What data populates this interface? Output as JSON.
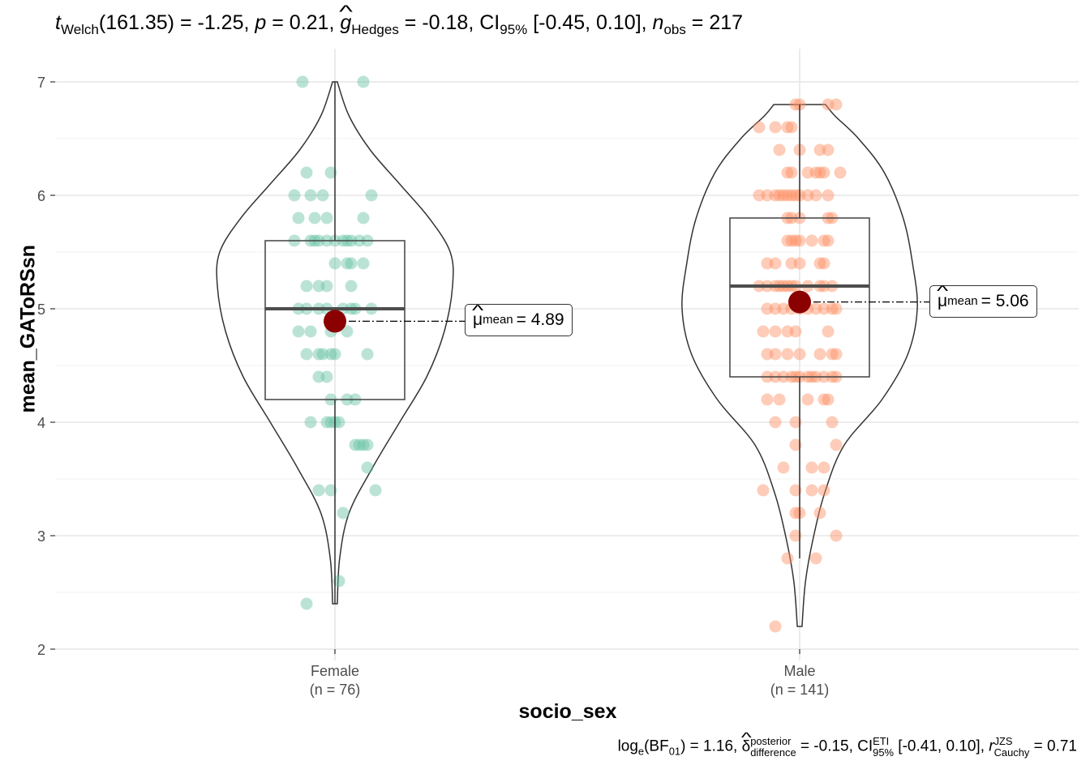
{
  "title": {
    "t_symbol": "t",
    "t_sub": "Welch",
    "df": "(161.35)",
    "eq1": " = -1.25, ",
    "p_symbol": "p",
    "eq2": " = 0.21, ",
    "g_symbol": "g",
    "g_sub": "Hedges",
    "eq3": " = -0.18, CI",
    "ci_sub": "95%",
    "ci_text": " [-0.45, 0.10], ",
    "n_symbol": "n",
    "n_sub": "obs",
    "eq4": " = 217"
  },
  "caption": {
    "log": "log",
    "log_sub": "e",
    "bf": "(BF",
    "bf_sub": "01",
    "eq1": ") = 1.16, ",
    "delta": "δ",
    "delta_sup": "posterior",
    "delta_sub": "difference",
    "eq2": " = -0.15, CI",
    "ci_sup": "ETI",
    "ci_sub": "95%",
    "ci_text": " [-0.41, 0.10], ",
    "r_symbol": "r",
    "r_sup": "JZS",
    "r_sub": "Cauchy",
    "eq3": " = 0.71"
  },
  "chart_data": {
    "type": "violin-box-scatter",
    "xlabel": "socio_sex",
    "ylabel": "mean_GAToRSsn",
    "ylim": [
      2,
      7
    ],
    "yticks": [
      2,
      3,
      4,
      5,
      6,
      7
    ],
    "grid": true,
    "groups": [
      {
        "name": "Female",
        "count_label": "(n = 76)",
        "color": "#66c2a5",
        "box": {
          "q1": 4.2,
          "median": 5.0,
          "q3": 5.6,
          "whisker_low": 2.4,
          "whisker_high": 7.0
        },
        "mean": 4.89,
        "mean_label_symbol": "μ",
        "mean_label_sub": "mean",
        "mean_label_value": "= 4.89",
        "violin": [
          [
            2.4,
            0.02
          ],
          [
            2.8,
            0.04
          ],
          [
            3.2,
            0.12
          ],
          [
            3.6,
            0.32
          ],
          [
            4.0,
            0.55
          ],
          [
            4.4,
            0.78
          ],
          [
            4.8,
            0.93
          ],
          [
            5.2,
            1.0
          ],
          [
            5.5,
            0.98
          ],
          [
            5.8,
            0.8
          ],
          [
            6.1,
            0.55
          ],
          [
            6.4,
            0.3
          ],
          [
            6.7,
            0.12
          ],
          [
            7.0,
            0.02
          ]
        ],
        "points": [
          [
            -0.08,
            7.0
          ],
          [
            0.07,
            7.0
          ],
          [
            -0.07,
            6.2
          ],
          [
            -0.01,
            6.2
          ],
          [
            -0.1,
            6.0
          ],
          [
            -0.06,
            6.0
          ],
          [
            -0.03,
            6.0
          ],
          [
            0.09,
            6.0
          ],
          [
            -0.09,
            5.8
          ],
          [
            -0.05,
            5.8
          ],
          [
            -0.02,
            5.8
          ],
          [
            0.07,
            5.8
          ],
          [
            -0.1,
            5.6
          ],
          [
            -0.06,
            5.6
          ],
          [
            -0.05,
            5.6
          ],
          [
            -0.04,
            5.6
          ],
          [
            -0.02,
            5.6
          ],
          [
            0.0,
            5.6
          ],
          [
            0.02,
            5.6
          ],
          [
            0.03,
            5.6
          ],
          [
            0.04,
            5.6
          ],
          [
            0.06,
            5.6
          ],
          [
            0.08,
            5.6
          ],
          [
            0.0,
            5.4
          ],
          [
            0.03,
            5.4
          ],
          [
            0.04,
            5.4
          ],
          [
            0.07,
            5.4
          ],
          [
            -0.07,
            5.2
          ],
          [
            -0.04,
            5.2
          ],
          [
            -0.02,
            5.2
          ],
          [
            0.04,
            5.2
          ],
          [
            -0.09,
            5.0
          ],
          [
            -0.07,
            5.0
          ],
          [
            -0.04,
            5.0
          ],
          [
            -0.02,
            5.0
          ],
          [
            0.02,
            5.0
          ],
          [
            0.04,
            5.0
          ],
          [
            0.05,
            5.0
          ],
          [
            0.09,
            5.0
          ],
          [
            -0.09,
            4.8
          ],
          [
            -0.06,
            4.8
          ],
          [
            -0.01,
            4.8
          ],
          [
            0.03,
            4.8
          ],
          [
            -0.07,
            4.6
          ],
          [
            -0.04,
            4.6
          ],
          [
            -0.03,
            4.6
          ],
          [
            -0.01,
            4.6
          ],
          [
            0.0,
            4.6
          ],
          [
            0.08,
            4.6
          ],
          [
            -0.04,
            4.4
          ],
          [
            -0.02,
            4.4
          ],
          [
            -0.01,
            4.2
          ],
          [
            0.03,
            4.2
          ],
          [
            0.05,
            4.2
          ],
          [
            -0.06,
            4.0
          ],
          [
            -0.02,
            4.0
          ],
          [
            -0.01,
            4.0
          ],
          [
            0.0,
            4.0
          ],
          [
            0.01,
            4.0
          ],
          [
            0.05,
            3.8
          ],
          [
            0.06,
            3.8
          ],
          [
            0.07,
            3.8
          ],
          [
            0.08,
            3.8
          ],
          [
            0.08,
            3.6
          ],
          [
            -0.04,
            3.4
          ],
          [
            -0.01,
            3.4
          ],
          [
            0.1,
            3.4
          ],
          [
            0.02,
            3.2
          ],
          [
            0.01,
            2.6
          ],
          [
            -0.07,
            2.4
          ]
        ]
      },
      {
        "name": "Male",
        "count_label": "(n = 141)",
        "color": "#fc8d62",
        "box": {
          "q1": 4.4,
          "median": 5.2,
          "q3": 5.8,
          "whisker_low": 2.8,
          "whisker_high": 6.8
        },
        "mean": 5.06,
        "mean_label_symbol": "μ",
        "mean_label_sub": "mean",
        "mean_label_value": "= 5.06",
        "violin": [
          [
            2.2,
            0.02
          ],
          [
            2.6,
            0.05
          ],
          [
            3.0,
            0.12
          ],
          [
            3.4,
            0.22
          ],
          [
            3.8,
            0.38
          ],
          [
            4.2,
            0.7
          ],
          [
            4.6,
            0.92
          ],
          [
            5.0,
            1.0
          ],
          [
            5.4,
            0.96
          ],
          [
            5.8,
            0.88
          ],
          [
            6.2,
            0.72
          ],
          [
            6.5,
            0.5
          ],
          [
            6.7,
            0.3
          ],
          [
            6.8,
            0.22
          ]
        ],
        "points": [
          [
            -0.01,
            6.8
          ],
          [
            0.0,
            6.8
          ],
          [
            0.07,
            6.8
          ],
          [
            0.09,
            6.8
          ],
          [
            -0.06,
            6.6
          ],
          [
            -0.03,
            6.6
          ],
          [
            -0.02,
            6.6
          ],
          [
            -0.1,
            6.6
          ],
          [
            -0.05,
            6.4
          ],
          [
            0.0,
            6.4
          ],
          [
            0.05,
            6.4
          ],
          [
            0.07,
            6.4
          ],
          [
            -0.03,
            6.2
          ],
          [
            -0.02,
            6.2
          ],
          [
            0.02,
            6.2
          ],
          [
            0.04,
            6.2
          ],
          [
            0.05,
            6.2
          ],
          [
            0.06,
            6.2
          ],
          [
            0.1,
            6.2
          ],
          [
            -0.1,
            6.0
          ],
          [
            -0.08,
            6.0
          ],
          [
            -0.06,
            6.0
          ],
          [
            -0.05,
            6.0
          ],
          [
            -0.04,
            6.0
          ],
          [
            -0.03,
            6.0
          ],
          [
            -0.02,
            6.0
          ],
          [
            -0.01,
            6.0
          ],
          [
            0.0,
            6.0
          ],
          [
            0.02,
            6.0
          ],
          [
            0.04,
            6.0
          ],
          [
            0.07,
            6.0
          ],
          [
            -0.03,
            5.8
          ],
          [
            -0.02,
            5.8
          ],
          [
            0.0,
            5.8
          ],
          [
            0.07,
            5.8
          ],
          [
            0.08,
            5.8
          ],
          [
            -0.03,
            5.6
          ],
          [
            -0.02,
            5.6
          ],
          [
            -0.01,
            5.6
          ],
          [
            0.0,
            5.6
          ],
          [
            0.03,
            5.6
          ],
          [
            0.06,
            5.6
          ],
          [
            0.07,
            5.6
          ],
          [
            -0.06,
            5.4
          ],
          [
            -0.08,
            5.4
          ],
          [
            -0.02,
            5.4
          ],
          [
            0.0,
            5.4
          ],
          [
            0.05,
            5.4
          ],
          [
            0.06,
            5.4
          ],
          [
            -0.1,
            5.2
          ],
          [
            -0.08,
            5.2
          ],
          [
            -0.06,
            5.2
          ],
          [
            -0.05,
            5.2
          ],
          [
            -0.04,
            5.2
          ],
          [
            -0.03,
            5.2
          ],
          [
            -0.02,
            5.2
          ],
          [
            -0.01,
            5.2
          ],
          [
            0.02,
            5.2
          ],
          [
            0.05,
            5.2
          ],
          [
            0.06,
            5.2
          ],
          [
            0.08,
            5.2
          ],
          [
            -0.08,
            5.0
          ],
          [
            -0.06,
            5.0
          ],
          [
            -0.04,
            5.0
          ],
          [
            -0.02,
            5.0
          ],
          [
            0.0,
            5.0
          ],
          [
            0.02,
            5.0
          ],
          [
            0.04,
            5.0
          ],
          [
            0.06,
            5.0
          ],
          [
            0.08,
            5.0
          ],
          [
            0.09,
            5.0
          ],
          [
            -0.09,
            4.8
          ],
          [
            -0.06,
            4.8
          ],
          [
            -0.03,
            4.8
          ],
          [
            -0.01,
            4.8
          ],
          [
            0.07,
            4.8
          ],
          [
            -0.08,
            4.6
          ],
          [
            -0.06,
            4.6
          ],
          [
            -0.03,
            4.6
          ],
          [
            0.0,
            4.6
          ],
          [
            0.05,
            4.6
          ],
          [
            0.08,
            4.6
          ],
          [
            0.09,
            4.6
          ],
          [
            -0.08,
            4.4
          ],
          [
            -0.06,
            4.4
          ],
          [
            -0.04,
            4.4
          ],
          [
            -0.02,
            4.4
          ],
          [
            -0.01,
            4.4
          ],
          [
            0.0,
            4.4
          ],
          [
            0.02,
            4.4
          ],
          [
            0.03,
            4.4
          ],
          [
            0.04,
            4.4
          ],
          [
            0.06,
            4.4
          ],
          [
            0.08,
            4.4
          ],
          [
            0.09,
            4.4
          ],
          [
            -0.08,
            4.2
          ],
          [
            -0.05,
            4.2
          ],
          [
            0.02,
            4.2
          ],
          [
            0.06,
            4.2
          ],
          [
            0.07,
            4.2
          ],
          [
            -0.06,
            4.0
          ],
          [
            -0.01,
            4.0
          ],
          [
            0.08,
            4.0
          ],
          [
            -0.01,
            3.8
          ],
          [
            0.09,
            3.8
          ],
          [
            -0.04,
            3.6
          ],
          [
            0.03,
            3.6
          ],
          [
            0.06,
            3.6
          ],
          [
            -0.09,
            3.4
          ],
          [
            -0.01,
            3.4
          ],
          [
            0.03,
            3.4
          ],
          [
            0.06,
            3.4
          ],
          [
            -0.01,
            3.2
          ],
          [
            0.0,
            3.2
          ],
          [
            0.05,
            3.2
          ],
          [
            -0.01,
            3.0
          ],
          [
            0.09,
            3.0
          ],
          [
            -0.03,
            2.8
          ],
          [
            0.04,
            2.8
          ],
          [
            -0.06,
            2.2
          ]
        ]
      }
    ]
  }
}
